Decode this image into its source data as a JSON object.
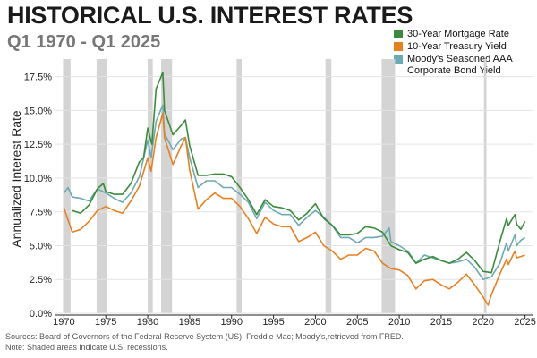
{
  "chart_data": {
    "type": "line",
    "title": "HISTORICAL U.S. INTEREST RATES",
    "subtitle": "Q1 1970 - Q1 2025",
    "xlabel": "",
    "ylabel": "Annualized Interest Rate",
    "xlim": [
      1969,
      2026
    ],
    "ylim": [
      0,
      18.8
    ],
    "x_ticks": [
      {
        "value": 1970,
        "label": "1970"
      },
      {
        "value": 1975,
        "label": "1975"
      },
      {
        "value": 1980,
        "label": "1980"
      },
      {
        "value": 1985,
        "label": "1985"
      },
      {
        "value": 1990,
        "label": "1990"
      },
      {
        "value": 1995,
        "label": "1995"
      },
      {
        "value": 2000,
        "label": "2000"
      },
      {
        "value": 2005,
        "label": "2005"
      },
      {
        "value": 2010,
        "label": "2010"
      },
      {
        "value": 2015,
        "label": "2015"
      },
      {
        "value": 2020,
        "label": "2020"
      },
      {
        "value": 2025,
        "label": "2025"
      }
    ],
    "y_ticks": [
      {
        "value": 0,
        "label": "0.0%"
      },
      {
        "value": 2.5,
        "label": "2.5%"
      },
      {
        "value": 5,
        "label": "5.0%"
      },
      {
        "value": 7.5,
        "label": "7.5%"
      },
      {
        "value": 10,
        "label": "10.0%"
      },
      {
        "value": 12.5,
        "label": "12.5%"
      },
      {
        "value": 15,
        "label": "15.0%"
      },
      {
        "value": 17.5,
        "label": "17.5%"
      }
    ],
    "grid": "horizontal",
    "legend_position": "top-right",
    "recessions": [
      [
        1969.9,
        1970.8
      ],
      [
        1973.9,
        1975.2
      ],
      [
        1980.0,
        1980.6
      ],
      [
        1981.6,
        1982.9
      ],
      [
        1990.6,
        1991.2
      ],
      [
        2001.2,
        2001.9
      ],
      [
        2007.9,
        2009.5
      ],
      [
        2020.1,
        2020.4
      ]
    ],
    "series": [
      {
        "name": "30-Year Mortgage Rate",
        "color": "#3a8c3a",
        "x": [
          1971,
          1972,
          1973,
          1974,
          1974.7,
          1975,
          1976,
          1977,
          1978,
          1979,
          1979.5,
          1980,
          1980.5,
          1981,
          1981.8,
          1982,
          1983,
          1984,
          1984.5,
          1985,
          1986,
          1987,
          1988,
          1989,
          1990,
          1991,
          1992,
          1993,
          1994,
          1995,
          1996,
          1997,
          1998,
          1999,
          2000,
          2001,
          2002,
          2003,
          2004,
          2005,
          2006,
          2007,
          2008,
          2009,
          2010,
          2011,
          2012,
          2013,
          2014,
          2015,
          2016,
          2017,
          2018,
          2019,
          2020,
          2021,
          2022,
          2022.8,
          2023,
          2023.8,
          2024,
          2024.5,
          2025
        ],
        "values": [
          7.6,
          7.4,
          8.0,
          9.2,
          9.6,
          9.0,
          8.8,
          8.8,
          9.6,
          11.2,
          11.5,
          13.7,
          12.5,
          16.6,
          17.8,
          15.0,
          13.2,
          13.9,
          14.3,
          12.4,
          10.2,
          10.2,
          10.3,
          10.3,
          10.1,
          9.3,
          8.4,
          7.3,
          8.4,
          7.9,
          7.8,
          7.6,
          6.9,
          7.4,
          8.1,
          7.0,
          6.5,
          5.8,
          5.8,
          5.9,
          6.4,
          6.3,
          6.0,
          5.0,
          4.7,
          4.5,
          3.7,
          4.0,
          4.2,
          3.9,
          3.7,
          4.0,
          4.5,
          3.9,
          3.1,
          3.0,
          5.3,
          7.0,
          6.5,
          7.3,
          6.6,
          6.2,
          6.8
        ]
      },
      {
        "name": "10-Year Treasury Yield",
        "color": "#e8801e",
        "x": [
          1970,
          1971,
          1972,
          1973,
          1974,
          1975,
          1976,
          1977,
          1978,
          1979,
          1980,
          1980.4,
          1981,
          1981.8,
          1982,
          1983,
          1984,
          1984.5,
          1985,
          1986,
          1987,
          1988,
          1989,
          1990,
          1991,
          1992,
          1993,
          1994,
          1995,
          1996,
          1997,
          1998,
          1999,
          2000,
          2001,
          2002,
          2003,
          2004,
          2005,
          2006,
          2007,
          2008,
          2009,
          2010,
          2011,
          2012,
          2013,
          2014,
          2015,
          2016,
          2017,
          2018,
          2019,
          2020,
          2020.6,
          2021,
          2022,
          2022.8,
          2023,
          2023.8,
          2024,
          2024.5,
          2025
        ],
        "values": [
          7.8,
          6.0,
          6.2,
          6.8,
          7.6,
          7.9,
          7.6,
          7.4,
          8.3,
          9.4,
          11.5,
          10.5,
          13.0,
          14.8,
          13.0,
          11.0,
          12.4,
          13.0,
          10.6,
          7.7,
          8.4,
          8.9,
          8.5,
          8.5,
          7.9,
          7.0,
          5.9,
          7.1,
          6.6,
          6.4,
          6.4,
          5.3,
          5.6,
          6.0,
          5.0,
          4.6,
          4.0,
          4.3,
          4.3,
          4.8,
          4.6,
          3.7,
          3.3,
          3.2,
          2.8,
          1.8,
          2.4,
          2.5,
          2.1,
          1.8,
          2.3,
          2.9,
          2.1,
          1.2,
          0.6,
          1.4,
          2.9,
          4.0,
          3.6,
          4.6,
          4.1,
          4.2,
          4.3
        ]
      },
      {
        "name": "Moody's Seasoned AAA Corporate Bond Yield",
        "color": "#6aaab2",
        "x": [
          1970,
          1970.5,
          1971,
          1972,
          1973,
          1974,
          1975,
          1976,
          1977,
          1978,
          1979,
          1980,
          1980.4,
          1981,
          1981.8,
          1982,
          1983,
          1984,
          1984.5,
          1985,
          1986,
          1987,
          1988,
          1989,
          1990,
          1991,
          1992,
          1993,
          1994,
          1995,
          1996,
          1997,
          1998,
          1999,
          2000,
          2001,
          2002,
          2003,
          2004,
          2005,
          2006,
          2007,
          2008,
          2008.8,
          2009,
          2010,
          2011,
          2012,
          2013,
          2014,
          2015,
          2016,
          2017,
          2018,
          2019,
          2020,
          2021,
          2022,
          2022.8,
          2023,
          2023.8,
          2024,
          2024.5,
          2025
        ],
        "values": [
          8.9,
          9.3,
          8.6,
          8.5,
          8.3,
          9.2,
          8.9,
          8.5,
          8.2,
          8.9,
          10.1,
          12.8,
          11.5,
          14.2,
          15.4,
          13.3,
          12.1,
          12.9,
          13.0,
          11.5,
          9.3,
          9.8,
          9.8,
          9.3,
          9.3,
          8.8,
          8.2,
          7.0,
          8.2,
          7.6,
          7.3,
          7.3,
          6.5,
          7.1,
          7.6,
          7.1,
          6.5,
          5.6,
          5.6,
          5.2,
          5.6,
          5.6,
          5.7,
          6.3,
          5.3,
          5.0,
          4.6,
          3.7,
          4.3,
          4.1,
          3.9,
          3.7,
          3.8,
          4.0,
          3.4,
          2.5,
          2.7,
          3.7,
          5.2,
          4.6,
          5.8,
          5.0,
          5.4,
          5.6
        ]
      }
    ]
  },
  "legend": {
    "items": [
      {
        "label": "30-Year Mortgage Rate",
        "color": "#3a8c3a"
      },
      {
        "label": "10-Year Treasury Yield",
        "color": "#e8801e"
      },
      {
        "label": "Moody's Seasoned AAA Corporate Bond Yield",
        "color": "#6aaab2"
      }
    ]
  },
  "footnote": {
    "line1": "Sources: Board of Governors of the Federal Reserve System (US); Freddie Mac; Moody's,retrieved from FRED.",
    "line2": "Note: Shaded areas indicate U.S. recessions."
  }
}
